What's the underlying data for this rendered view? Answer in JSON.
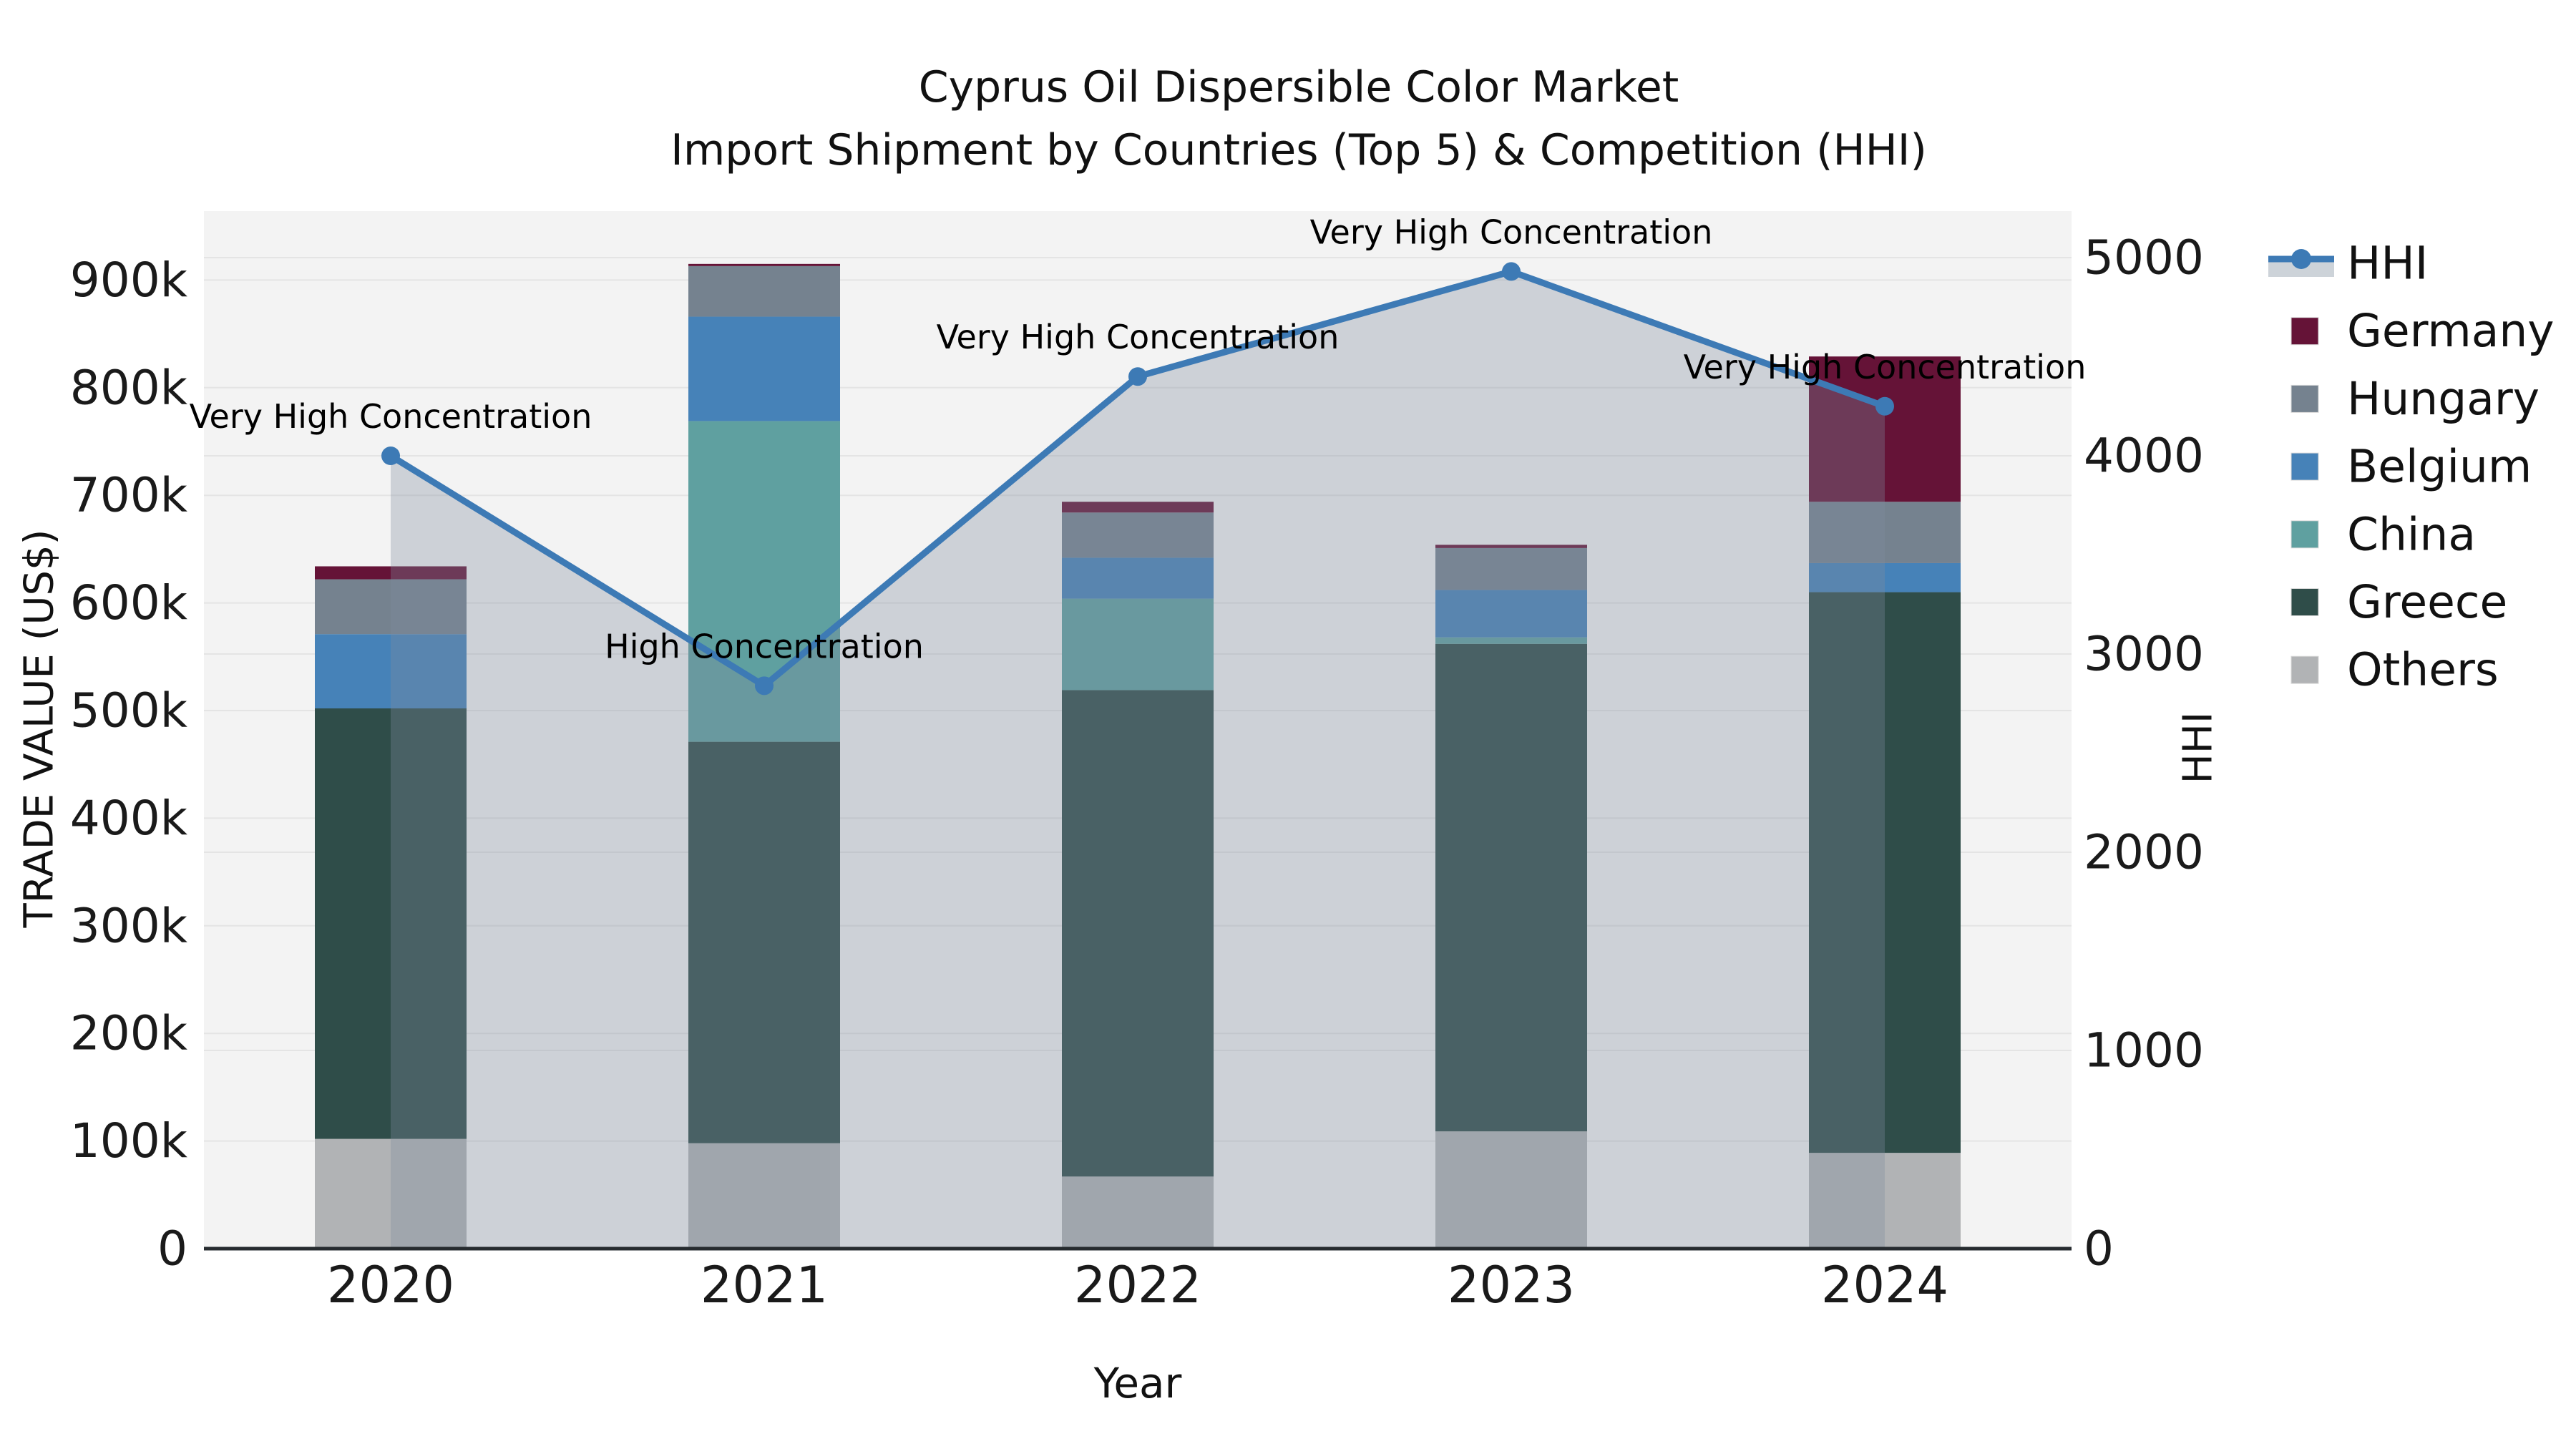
{
  "title": {
    "line1": "Cyprus Oil Dispersible Color Market",
    "line2": "Import Shipment by Countries (Top 5) & Competition (HHI)"
  },
  "axes": {
    "x": {
      "title": "Year",
      "tick_labels": [
        "2020",
        "2021",
        "2022",
        "2023",
        "2024"
      ]
    },
    "y_left": {
      "title": "TRADE VALUE (US$)",
      "tick_labels": [
        "0",
        "100k",
        "200k",
        "300k",
        "400k",
        "500k",
        "600k",
        "700k",
        "800k",
        "900k"
      ],
      "tick_values_k": [
        0,
        100,
        200,
        300,
        400,
        500,
        600,
        700,
        800,
        900
      ]
    },
    "y_right": {
      "title": "HHI",
      "tick_labels": [
        "0",
        "1000",
        "2000",
        "3000",
        "4000",
        "5000"
      ],
      "tick_values": [
        0,
        1000,
        2000,
        3000,
        4000,
        5000
      ]
    }
  },
  "legend": {
    "items": [
      {
        "label": "HHI",
        "type": "line"
      },
      {
        "label": "Germany",
        "type": "swatch",
        "color": "#651337"
      },
      {
        "label": "Hungary",
        "type": "swatch",
        "color": "#75828f"
      },
      {
        "label": "Belgium",
        "type": "swatch",
        "color": "#4682b8"
      },
      {
        "label": "China",
        "type": "swatch",
        "color": "#5fa0a0"
      },
      {
        "label": "Greece",
        "type": "swatch",
        "color": "#2f4d49"
      },
      {
        "label": "Others",
        "type": "swatch",
        "color": "#b1b3b5"
      }
    ]
  },
  "chart_data": {
    "type": "bar+line",
    "categories": [
      "2020",
      "2021",
      "2022",
      "2023",
      "2024"
    ],
    "stack_order_note": "bottom to top",
    "series": [
      {
        "name": "Others",
        "color": "#b1b3b5",
        "values_k_usd": [
          102,
          98,
          67,
          109,
          89
        ]
      },
      {
        "name": "Greece",
        "color": "#2f4d49",
        "values_k_usd": [
          400,
          373,
          452,
          453,
          521
        ]
      },
      {
        "name": "China",
        "color": "#5fa0a0",
        "values_k_usd": [
          0,
          298,
          85,
          6,
          0
        ]
      },
      {
        "name": "Belgium",
        "color": "#4682b8",
        "values_k_usd": [
          69,
          97,
          38,
          44,
          27
        ]
      },
      {
        "name": "Hungary",
        "color": "#75828f",
        "values_k_usd": [
          51,
          47,
          42,
          39,
          57
        ]
      },
      {
        "name": "Germany",
        "color": "#651337",
        "values_k_usd": [
          12,
          2,
          10,
          3,
          135
        ]
      }
    ],
    "totals_k_usd": [
      634,
      915,
      694,
      654,
      829
    ],
    "hhi": {
      "name": "HHI",
      "values": [
        4000,
        2840,
        4400,
        4930,
        4250
      ],
      "line_color": "#3d7ab5",
      "area_color": "rgba(128,140,158,0.33)",
      "legend_band_color": "#cdd3d9"
    },
    "annotations": [
      {
        "year": "2020",
        "text": "Very High Concentration"
      },
      {
        "year": "2021",
        "text": "High Concentration"
      },
      {
        "year": "2022",
        "text": "Very High Concentration"
      },
      {
        "year": "2023",
        "text": "Very High Concentration"
      },
      {
        "year": "2024",
        "text": "Very High Concentration"
      }
    ],
    "xlabel": "Year",
    "ylabel_left": "TRADE VALUE (US$)",
    "ylabel_right": "HHI",
    "ylim_left_k": [
      0,
      964
    ],
    "ylim_right": [
      0,
      5235
    ],
    "grid": true,
    "legend_position": "right",
    "plot_bg": "#f3f3f3",
    "grid_color": "#e4e4e4",
    "axis_line_color": "#262b2f"
  }
}
